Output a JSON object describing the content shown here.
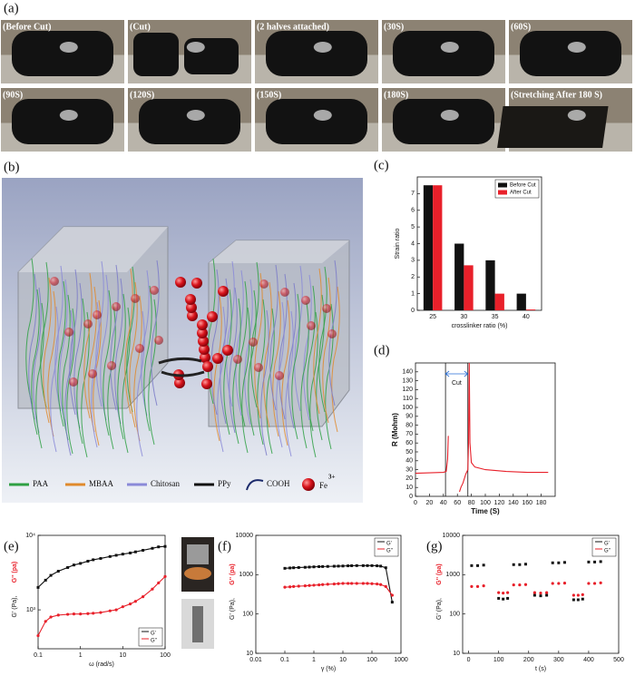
{
  "panel_a": "(a)",
  "photos": [
    "(Before Cut)",
    "(Cut)",
    "(2 halves attached)",
    "(30S)",
    "(60S)",
    "(90S)",
    "(120S)",
    "(150S)",
    "(180S)",
    "(Stretching After 180 S)"
  ],
  "schematic": {
    "panel": "(b)",
    "legend": [
      "PAA",
      "MBAA",
      "Chitosan",
      "PPy",
      "COOH"
    ],
    "ion": "Fe",
    "ion_charge": "3+"
  },
  "chart_data": [
    {
      "panel": "(c)",
      "type": "bar",
      "categories": [
        "25",
        "30",
        "35",
        "40"
      ],
      "series": [
        {
          "name": "Before Cut",
          "color": "#111111",
          "values": [
            7.5,
            4,
            3,
            1
          ]
        },
        {
          "name": "After Cut",
          "color": "#e8202a",
          "values": [
            7.5,
            2.7,
            1,
            0.05
          ]
        }
      ],
      "ylim": [
        0,
        8
      ],
      "yticks": [
        0,
        1,
        2,
        3,
        4,
        5,
        6,
        7
      ],
      "xlabel": "crosslinker ratio (%)",
      "ylabel": "Strain ratio",
      "legend": "top-right"
    },
    {
      "panel": "(d)",
      "type": "line",
      "x": [
        0,
        20,
        40,
        44,
        46,
        47,
        55,
        63,
        65,
        68,
        72,
        75,
        76,
        77,
        78,
        80,
        85,
        100,
        130,
        160,
        190
      ],
      "values": [
        26,
        26.5,
        27,
        28,
        42,
        68,
        null,
        5,
        10,
        15,
        25,
        30,
        60,
        150,
        60,
        38,
        33,
        30,
        28,
        27,
        27
      ],
      "color": "#e8202a",
      "xlim": [
        0,
        200
      ],
      "xticks": [
        0,
        20,
        40,
        60,
        80,
        100,
        120,
        140,
        160,
        180
      ],
      "ylim": [
        0,
        150
      ],
      "yticks": [
        0,
        10,
        20,
        30,
        40,
        50,
        60,
        70,
        80,
        90,
        100,
        110,
        120,
        130,
        140
      ],
      "xlabel": "Time (S)",
      "ylabel": "R (Mohm)",
      "vlines": [
        43,
        75
      ],
      "annotation": "Cut"
    },
    {
      "panel": "(e)",
      "type": "line",
      "markers": true,
      "x_scale": "log",
      "y_scale": "log",
      "x": [
        0.1,
        0.15,
        0.2,
        0.3,
        0.5,
        0.7,
        1,
        1.5,
        2,
        3,
        5,
        7,
        10,
        15,
        20,
        30,
        50,
        70,
        100
      ],
      "series": [
        {
          "name": "G'",
          "color": "#111111",
          "values": [
            2000,
            2500,
            2900,
            3300,
            3700,
            4000,
            4200,
            4500,
            4700,
            4900,
            5200,
            5400,
            5600,
            5800,
            6000,
            6300,
            6700,
            7000,
            7100
          ]
        },
        {
          "name": "G''",
          "color": "#e8202a",
          "values": [
            450,
            700,
            800,
            850,
            870,
            880,
            880,
            890,
            900,
            920,
            970,
            1000,
            1100,
            1200,
            1300,
            1500,
            1900,
            2300,
            2800
          ]
        }
      ],
      "xlim": [
        0.1,
        100
      ],
      "xticks": [
        0.1,
        1,
        10,
        100
      ],
      "ylim": [
        300,
        10000
      ],
      "yticks": [
        {
          "value": 1000,
          "label": "10³"
        },
        {
          "value": 10000,
          "label": "10⁴"
        }
      ],
      "xlabel": "ω (rad/s)",
      "ylabel": "G' (Pa),",
      "ylabel2": "G'' (pa)",
      "legend": "bottom-right"
    },
    {
      "panel": "(f)",
      "type": "line",
      "markers": true,
      "x_scale": "log",
      "y_scale": "log",
      "x": [
        0.1,
        0.15,
        0.2,
        0.3,
        0.5,
        0.7,
        1,
        1.5,
        2,
        3,
        5,
        7,
        10,
        15,
        20,
        30,
        50,
        70,
        100,
        150,
        200,
        300,
        500
      ],
      "series": [
        {
          "name": "G'",
          "color": "#111111",
          "values": [
            1450,
            1480,
            1500,
            1520,
            1540,
            1560,
            1580,
            1600,
            1610,
            1620,
            1640,
            1650,
            1660,
            1680,
            1690,
            1700,
            1700,
            1700,
            1700,
            1680,
            1650,
            1500,
            200
          ]
        },
        {
          "name": "G''",
          "color": "#e8202a",
          "values": [
            480,
            490,
            500,
            510,
            520,
            530,
            540,
            550,
            560,
            570,
            580,
            590,
            600,
            600,
            600,
            600,
            600,
            600,
            590,
            580,
            560,
            500,
            300
          ]
        }
      ],
      "xlim": [
        0.01,
        1000
      ],
      "xticks": [
        0.01,
        0.1,
        1,
        10,
        100,
        1000
      ],
      "ylim": [
        10,
        10000
      ],
      "yticks": [
        10,
        100,
        1000,
        10000
      ],
      "xlabel": "γ (%)",
      "ylabel": "G' (Pa),",
      "ylabel2": "G'' (pa)",
      "legend": "top-right"
    },
    {
      "panel": "(g)",
      "type": "scatter",
      "y_scale": "log",
      "x": [
        10,
        30,
        50,
        100,
        115,
        130,
        150,
        170,
        190,
        220,
        240,
        260,
        280,
        300,
        320,
        350,
        365,
        380,
        400,
        420,
        440
      ],
      "series": [
        {
          "name": "G'",
          "color": "#111111",
          "values": [
            1700,
            1700,
            1750,
            250,
            240,
            250,
            1800,
            1800,
            1850,
            300,
            290,
            300,
            2000,
            2000,
            2050,
            230,
            230,
            240,
            2100,
            2100,
            2150
          ]
        },
        {
          "name": "G''",
          "color": "#e8202a",
          "values": [
            500,
            500,
            520,
            350,
            340,
            350,
            550,
            550,
            560,
            350,
            340,
            350,
            600,
            600,
            610,
            300,
            300,
            310,
            600,
            600,
            620
          ]
        }
      ],
      "xlim": [
        -20,
        500
      ],
      "xticks": [
        0,
        100,
        200,
        300,
        400,
        500
      ],
      "ylim": [
        10,
        10000
      ],
      "yticks": [
        10,
        100,
        1000,
        10000
      ],
      "xlabel": "t (s)",
      "ylabel": "G' (Pa),",
      "ylabel2": "G'' (pa)",
      "legend": "top-right"
    }
  ]
}
